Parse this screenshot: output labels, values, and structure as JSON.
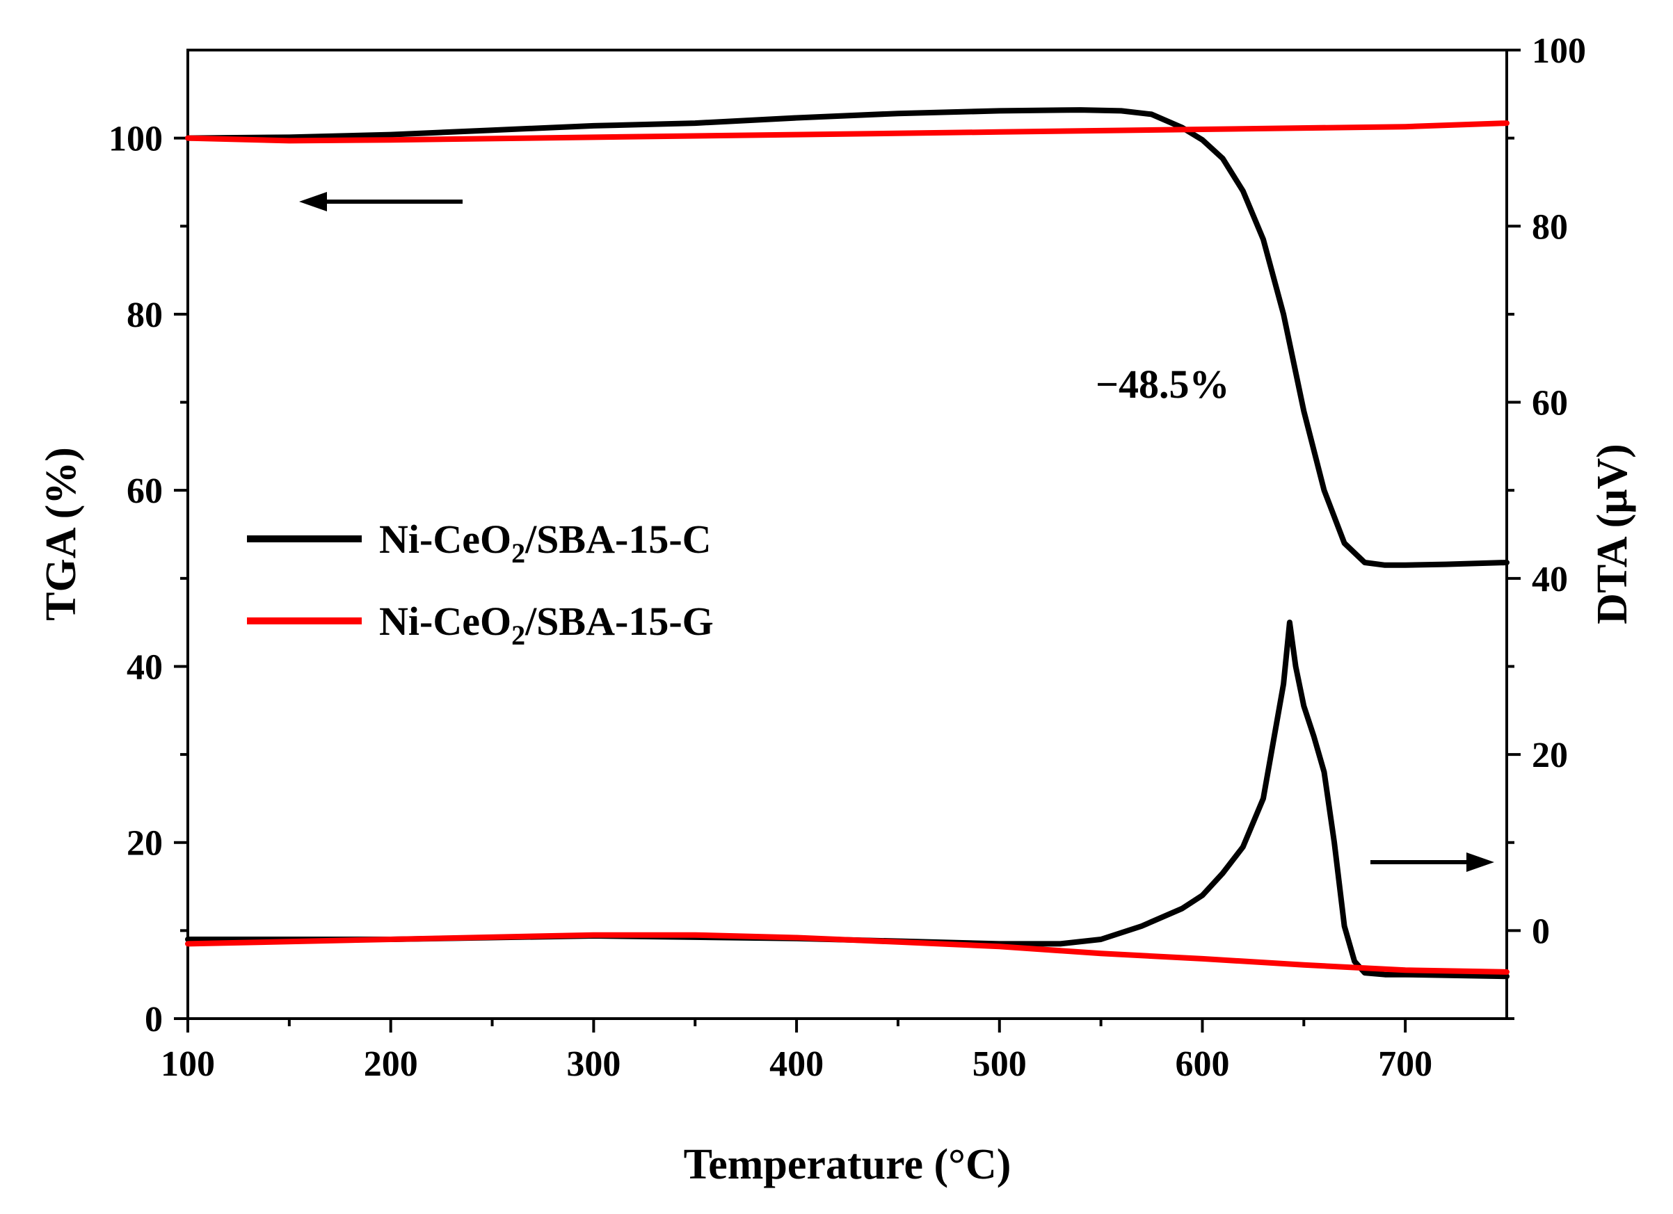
{
  "chart_data": {
    "type": "line",
    "title": "",
    "xlabel": "Temperature (°C)",
    "ylabel_left": "TGA (%)",
    "ylabel_right": "DTA (μV)",
    "xlim": [
      100,
      750
    ],
    "ylim_left": [
      0,
      110
    ],
    "ylim_right": [
      -10,
      100
    ],
    "x_ticks": [
      100,
      200,
      300,
      400,
      500,
      600,
      700
    ],
    "y_left_ticks": [
      0,
      20,
      40,
      60,
      80,
      100
    ],
    "y_right_ticks": [
      0,
      20,
      40,
      60,
      80,
      100
    ],
    "grid": false,
    "legend_position": "center-left",
    "annotation": "−48.5%",
    "series": [
      {
        "name": "Ni-CeO2/SBA-15-C",
        "label_main": "Ni-CeO",
        "label_sub": "2",
        "label_rest": "/SBA-15-C",
        "color": "#000000",
        "tga_x": [
          100,
          150,
          200,
          250,
          300,
          350,
          400,
          450,
          500,
          540,
          560,
          575,
          590,
          600,
          610,
          620,
          630,
          640,
          650,
          660,
          670,
          680,
          690,
          700,
          720,
          750
        ],
        "tga_y": [
          100.0,
          100.1,
          100.4,
          100.9,
          101.4,
          101.7,
          102.3,
          102.8,
          103.1,
          103.2,
          103.1,
          102.7,
          101.2,
          99.8,
          97.7,
          94.0,
          88.5,
          80.0,
          69.0,
          60.0,
          54.0,
          51.8,
          51.5,
          51.5,
          51.6,
          51.8
        ],
        "dta_x": [
          100,
          200,
          300,
          400,
          500,
          530,
          550,
          570,
          590,
          600,
          610,
          620,
          630,
          640,
          643,
          646,
          650,
          655,
          660,
          665,
          670,
          675,
          680,
          690,
          700,
          750
        ],
        "dta_y": [
          -1.0,
          -1.0,
          -0.6,
          -0.9,
          -1.5,
          -1.5,
          -1.0,
          0.5,
          2.5,
          4.0,
          6.5,
          9.5,
          15.0,
          28.0,
          35.0,
          30.0,
          25.5,
          22.0,
          18.0,
          10.0,
          0.5,
          -3.5,
          -4.8,
          -5.0,
          -5.0,
          -5.2
        ]
      },
      {
        "name": "Ni-CeO2/SBA-15-G",
        "label_main": "Ni-CeO",
        "label_sub": "2",
        "label_rest": "/SBA-15-G",
        "color": "#ff0000",
        "tga_x": [
          100,
          150,
          200,
          300,
          400,
          500,
          600,
          700,
          750
        ],
        "tga_y": [
          100.0,
          99.7,
          99.8,
          100.1,
          100.4,
          100.7,
          101.0,
          101.3,
          101.7
        ],
        "dta_x": [
          100,
          200,
          300,
          350,
          400,
          450,
          500,
          550,
          600,
          650,
          700,
          750
        ],
        "dta_y": [
          -1.5,
          -1.0,
          -0.5,
          -0.5,
          -0.8,
          -1.3,
          -1.8,
          -2.6,
          -3.2,
          -3.9,
          -4.5,
          -4.7
        ]
      }
    ]
  }
}
